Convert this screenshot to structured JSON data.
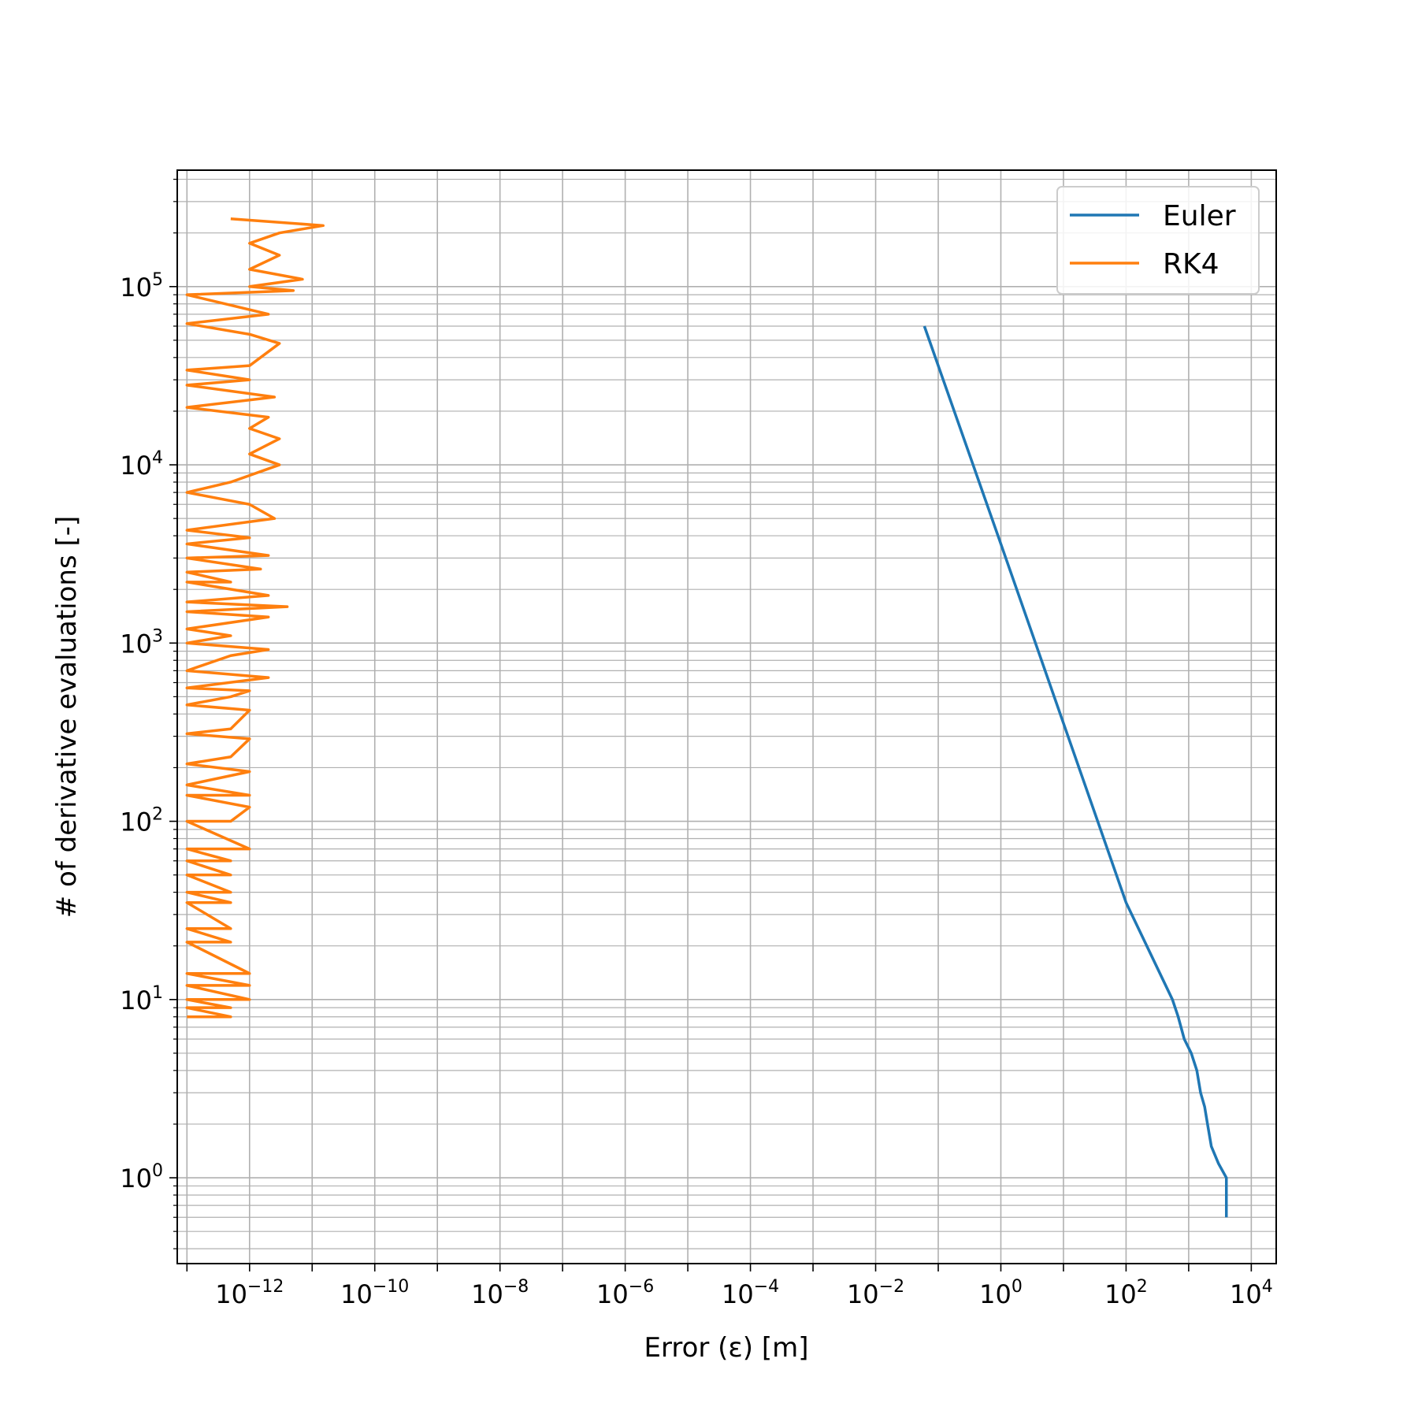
{
  "chart_data": {
    "type": "line",
    "title": "",
    "xlabel": "Error (ε) [m]",
    "ylabel": "# of derivative evaluations [-]",
    "xscale": "log",
    "yscale": "log",
    "xlim": [
      7e-14,
      25000
    ],
    "ylim": [
      0.33,
      450000
    ],
    "grid": "major and minor",
    "legend": "top-right",
    "x_tick_labels": [
      {
        "value": 1e-12,
        "base": "10",
        "exp": "−12"
      },
      {
        "value": 1e-10,
        "base": "10",
        "exp": "−10"
      },
      {
        "value": 1e-08,
        "base": "10",
        "exp": "−8"
      },
      {
        "value": 1e-06,
        "base": "10",
        "exp": "−6"
      },
      {
        "value": 0.0001,
        "base": "10",
        "exp": "−4"
      },
      {
        "value": 0.01,
        "base": "10",
        "exp": "−2"
      },
      {
        "value": 1,
        "base": "10",
        "exp": "0"
      },
      {
        "value": 100,
        "base": "10",
        "exp": "2"
      },
      {
        "value": 10000,
        "base": "10",
        "exp": "4"
      }
    ],
    "y_tick_labels": [
      {
        "value": 1,
        "base": "10",
        "exp": "0"
      },
      {
        "value": 10,
        "base": "10",
        "exp": "1"
      },
      {
        "value": 100,
        "base": "10",
        "exp": "2"
      },
      {
        "value": 1000,
        "base": "10",
        "exp": "3"
      },
      {
        "value": 10000,
        "base": "10",
        "exp": "4"
      },
      {
        "value": 100000,
        "base": "10",
        "exp": "5"
      }
    ],
    "series": [
      {
        "name": "Euler",
        "color": "#1f77b4",
        "points": [
          [
            4000,
            0.6
          ],
          [
            4000,
            1
          ],
          [
            3000,
            1.2
          ],
          [
            2300,
            1.5
          ],
          [
            2000,
            2
          ],
          [
            1800,
            2.5
          ],
          [
            1550,
            3
          ],
          [
            1350,
            4
          ],
          [
            1100,
            5
          ],
          [
            850,
            6
          ],
          [
            680,
            8
          ],
          [
            550,
            10
          ],
          [
            100,
            35
          ],
          [
            1,
            3600
          ],
          [
            0.06,
            60000
          ]
        ]
      },
      {
        "name": "RK4",
        "color": "#ff7f0e",
        "points": [
          [
            1e-13,
            8
          ],
          [
            5e-13,
            8
          ],
          [
            1e-13,
            9
          ],
          [
            5e-13,
            9
          ],
          [
            1e-13,
            10
          ],
          [
            1e-12,
            10
          ],
          [
            1e-13,
            12
          ],
          [
            1e-12,
            12
          ],
          [
            1e-13,
            14
          ],
          [
            1e-12,
            14
          ],
          [
            1e-13,
            21
          ],
          [
            5e-13,
            21
          ],
          [
            1e-13,
            25
          ],
          [
            5e-13,
            25
          ],
          [
            1e-13,
            35
          ],
          [
            5e-13,
            35
          ],
          [
            1e-13,
            40
          ],
          [
            5e-13,
            40
          ],
          [
            1e-13,
            50
          ],
          [
            5e-13,
            50
          ],
          [
            1e-13,
            60
          ],
          [
            5e-13,
            60
          ],
          [
            1e-13,
            70
          ],
          [
            1e-12,
            70
          ],
          [
            1e-13,
            100
          ],
          [
            5e-13,
            100
          ],
          [
            1e-12,
            120
          ],
          [
            1e-13,
            140
          ],
          [
            1e-12,
            140
          ],
          [
            1e-13,
            160
          ],
          [
            1e-12,
            190
          ],
          [
            1e-13,
            210
          ],
          [
            5e-13,
            230
          ],
          [
            1e-12,
            290
          ],
          [
            1e-13,
            310
          ],
          [
            5e-13,
            330
          ],
          [
            1e-12,
            420
          ],
          [
            1e-13,
            450
          ],
          [
            5e-13,
            500
          ],
          [
            1e-12,
            540
          ],
          [
            1e-13,
            560
          ],
          [
            2e-12,
            640
          ],
          [
            1e-13,
            700
          ],
          [
            5e-13,
            850
          ],
          [
            2e-12,
            920
          ],
          [
            1e-13,
            1000
          ],
          [
            5e-13,
            1100
          ],
          [
            1e-13,
            1200
          ],
          [
            2e-12,
            1400
          ],
          [
            1e-13,
            1500
          ],
          [
            4e-12,
            1600
          ],
          [
            1e-13,
            1700
          ],
          [
            2e-12,
            1850
          ],
          [
            1e-13,
            2200
          ],
          [
            5e-13,
            2200
          ],
          [
            1e-13,
            2500
          ],
          [
            1.5e-12,
            2600
          ],
          [
            1e-13,
            3000
          ],
          [
            2e-12,
            3100
          ],
          [
            1e-13,
            3600
          ],
          [
            1e-12,
            3900
          ],
          [
            1e-13,
            4300
          ],
          [
            2.5e-12,
            5000
          ],
          [
            1e-12,
            6000
          ],
          [
            1e-13,
            7000
          ],
          [
            5e-13,
            8000
          ],
          [
            3e-12,
            10000
          ],
          [
            1e-12,
            11500
          ],
          [
            3e-12,
            14000
          ],
          [
            1e-12,
            16000
          ],
          [
            2e-12,
            18500
          ],
          [
            1e-13,
            21000
          ],
          [
            2.5e-12,
            24000
          ],
          [
            1e-13,
            28000
          ],
          [
            1e-12,
            30000
          ],
          [
            1e-13,
            34000
          ],
          [
            1e-12,
            36000
          ],
          [
            3e-12,
            48000
          ],
          [
            1e-12,
            54000
          ],
          [
            1e-13,
            62000
          ],
          [
            2e-12,
            70000
          ],
          [
            1e-13,
            90000
          ],
          [
            5e-12,
            95000
          ],
          [
            1e-12,
            100000
          ],
          [
            7e-12,
            110000
          ],
          [
            1e-12,
            125000
          ],
          [
            3e-12,
            150000
          ],
          [
            1e-12,
            175000
          ],
          [
            3e-12,
            200000
          ],
          [
            1.5e-11,
            220000
          ],
          [
            5e-13,
            240000
          ]
        ]
      }
    ]
  }
}
